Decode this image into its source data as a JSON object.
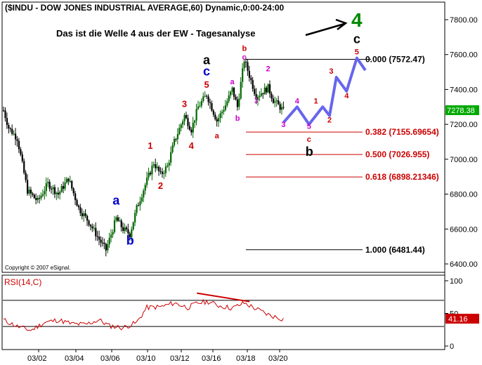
{
  "header": {
    "title": "($INDU - DOW JONES INDUSTRIAL AVERAGE,60) Dynamic,0:00-24:00",
    "annotation": "Das ist die Welle 4 aus der EW - Tagesanalyse"
  },
  "copyright": "Copyright © 2007 eSignal.",
  "price_panel": {
    "y_ticks": [
      "7800.00",
      "7600.00",
      "7400.00",
      "7200.00",
      "7000.00",
      "6800.00",
      "6600.00",
      "6400.00"
    ],
    "last_price": "7278.38",
    "fib_levels": [
      {
        "label": "0.000 (7572.47)",
        "value": 7572.47,
        "color": "#000000"
      },
      {
        "label": "0.382 (7155.69654)",
        "value": 7155.69654,
        "color": "#cc0000"
      },
      {
        "label": "0.500 (7026.955)",
        "value": 7026.955,
        "color": "#cc0000"
      },
      {
        "label": "0.618 (6898.21346)",
        "value": 6898.21346,
        "color": "#cc0000"
      },
      {
        "label": "1.000 (6481.44)",
        "value": 6481.44,
        "color": "#000000"
      }
    ]
  },
  "rsi_panel": {
    "label": "RSI(14,C)",
    "y_ticks": [
      "100",
      "50",
      "0"
    ],
    "last_value": "41.16"
  },
  "x_ticks": [
    "03/02",
    "03/04",
    "03/06",
    "03/10",
    "03/12",
    "03/16",
    "03/18",
    "03/20"
  ],
  "wave_labels": [
    {
      "text": "a",
      "color": "#0000cc",
      "size": "big",
      "price": 6740,
      "bar": 66
    },
    {
      "text": "b",
      "color": "#0000cc",
      "size": "big",
      "price": 6510,
      "bar": 74
    },
    {
      "text": "1",
      "color": "#cc0000",
      "size": "mid",
      "price": 7060,
      "bar": 86
    },
    {
      "text": "2",
      "color": "#cc0000",
      "size": "mid",
      "price": 6830,
      "bar": 92
    },
    {
      "text": "3",
      "color": "#cc0000",
      "size": "mid",
      "price": 7300,
      "bar": 106
    },
    {
      "text": "4",
      "color": "#cc0000",
      "size": "mid",
      "price": 7060,
      "bar": 110
    },
    {
      "text": "a",
      "color": "#000000",
      "size": "big",
      "price": 7545,
      "bar": 119
    },
    {
      "text": "c",
      "color": "#0000cc",
      "size": "big",
      "price": 7480,
      "bar": 119
    },
    {
      "text": "5",
      "color": "#cc0000",
      "size": "mid",
      "price": 7410,
      "bar": 119
    },
    {
      "text": "a",
      "color": "#cc0000",
      "size": "small",
      "price": 7120,
      "bar": 125
    },
    {
      "text": "a",
      "color": "#cc00cc",
      "size": "small",
      "price": 7430,
      "bar": 134
    },
    {
      "text": "b",
      "color": "#cc00cc",
      "size": "small",
      "price": 7220,
      "bar": 137
    },
    {
      "text": "b",
      "color": "#cc0000",
      "size": "small",
      "price": 7620,
      "bar": 141
    },
    {
      "text": "c",
      "color": "#cc00cc",
      "size": "small",
      "price": 7570,
      "bar": 141
    },
    {
      "text": "2",
      "color": "#cc00cc",
      "size": "small",
      "price": 7505,
      "bar": 155
    },
    {
      "text": "1",
      "color": "#cc00cc",
      "size": "small",
      "price": 7325,
      "bar": 148
    },
    {
      "text": "3",
      "color": "#cc00cc",
      "size": "small",
      "price": 7185,
      "bar": 164
    },
    {
      "text": "4",
      "color": "#cc00cc",
      "size": "small",
      "price": 7320,
      "bar": 172
    },
    {
      "text": "5",
      "color": "#cc00cc",
      "size": "small",
      "price": 7175,
      "bar": 179
    },
    {
      "text": "c",
      "color": "#cc0000",
      "size": "small",
      "price": 7100,
      "bar": 179
    },
    {
      "text": "b",
      "color": "#000000",
      "size": "big",
      "price": 7020,
      "bar": 179
    },
    {
      "text": "1",
      "color": "#cc0000",
      "size": "small",
      "price": 7320,
      "bar": 183
    },
    {
      "text": "2",
      "color": "#cc0000",
      "size": "small",
      "price": 7210,
      "bar": 191
    },
    {
      "text": "3",
      "color": "#cc0000",
      "size": "small",
      "price": 7490,
      "bar": 192
    },
    {
      "text": "4",
      "color": "#cc0000",
      "size": "small",
      "price": 7350,
      "bar": 201
    },
    {
      "text": "5",
      "color": "#cc0000",
      "size": "small",
      "price": 7600,
      "bar": 207
    },
    {
      "text": "c",
      "color": "#000000",
      "size": "big",
      "price": 7665,
      "bar": 207
    },
    {
      "text": "4",
      "color": "#008800",
      "size": "huge",
      "price": 7760,
      "bar": 207
    }
  ],
  "colors": {
    "up_bar": "#006600",
    "down_bar": "#000000",
    "projection": "#6666ee",
    "rsi_line": "#cc0000",
    "price_box": "#00aa00",
    "rsi_box": "#cc0000"
  },
  "chart_data": {
    "type": "candlestick",
    "title": "($INDU - DOW JONES INDUSTRIAL AVERAGE,60) Dynamic,0:00-24:00",
    "y_range": [
      6400,
      7800
    ],
    "rsi_range": [
      0,
      100
    ],
    "x_range_bars": [
      0,
      212
    ],
    "price_path": [
      {
        "bar": 0,
        "price": 7280
      },
      {
        "bar": 3,
        "price": 7180
      },
      {
        "bar": 8,
        "price": 7120
      },
      {
        "bar": 14,
        "price": 6820
      },
      {
        "bar": 20,
        "price": 6760
      },
      {
        "bar": 26,
        "price": 6860
      },
      {
        "bar": 32,
        "price": 6800
      },
      {
        "bar": 38,
        "price": 6890
      },
      {
        "bar": 44,
        "price": 6720
      },
      {
        "bar": 50,
        "price": 6640
      },
      {
        "bar": 56,
        "price": 6540
      },
      {
        "bar": 60,
        "price": 6480
      },
      {
        "bar": 66,
        "price": 6660
      },
      {
        "bar": 70,
        "price": 6600
      },
      {
        "bar": 74,
        "price": 6570
      },
      {
        "bar": 78,
        "price": 6720
      },
      {
        "bar": 84,
        "price": 6880
      },
      {
        "bar": 88,
        "price": 6980
      },
      {
        "bar": 92,
        "price": 6910
      },
      {
        "bar": 96,
        "price": 6960
      },
      {
        "bar": 100,
        "price": 7100
      },
      {
        "bar": 106,
        "price": 7250
      },
      {
        "bar": 110,
        "price": 7170
      },
      {
        "bar": 114,
        "price": 7300
      },
      {
        "bar": 119,
        "price": 7370
      },
      {
        "bar": 125,
        "price": 7220
      },
      {
        "bar": 130,
        "price": 7310
      },
      {
        "bar": 134,
        "price": 7400
      },
      {
        "bar": 137,
        "price": 7300
      },
      {
        "bar": 141,
        "price": 7570
      },
      {
        "bar": 148,
        "price": 7360
      },
      {
        "bar": 155,
        "price": 7410
      },
      {
        "bar": 158,
        "price": 7340
      },
      {
        "bar": 164,
        "price": 7278
      }
    ],
    "projection_path": [
      {
        "bar": 164,
        "price": 7210
      },
      {
        "bar": 172,
        "price": 7300
      },
      {
        "bar": 179,
        "price": 7200
      },
      {
        "bar": 187,
        "price": 7300
      },
      {
        "bar": 191,
        "price": 7250
      },
      {
        "bar": 195,
        "price": 7470
      },
      {
        "bar": 201,
        "price": 7390
      },
      {
        "bar": 207,
        "price": 7580
      },
      {
        "bar": 212,
        "price": 7510
      }
    ],
    "rsi_path": [
      {
        "bar": 0,
        "price": 40
      },
      {
        "bar": 8,
        "price": 30
      },
      {
        "bar": 16,
        "price": 24
      },
      {
        "bar": 24,
        "price": 36
      },
      {
        "bar": 32,
        "price": 40
      },
      {
        "bar": 40,
        "price": 34
      },
      {
        "bar": 48,
        "price": 33
      },
      {
        "bar": 56,
        "price": 40
      },
      {
        "bar": 62,
        "price": 31
      },
      {
        "bar": 70,
        "price": 28
      },
      {
        "bar": 78,
        "price": 36
      },
      {
        "bar": 84,
        "price": 59
      },
      {
        "bar": 92,
        "price": 60
      },
      {
        "bar": 100,
        "price": 66
      },
      {
        "bar": 108,
        "price": 59
      },
      {
        "bar": 114,
        "price": 66
      },
      {
        "bar": 120,
        "price": 68
      },
      {
        "bar": 126,
        "price": 62
      },
      {
        "bar": 134,
        "price": 58
      },
      {
        "bar": 141,
        "price": 66
      },
      {
        "bar": 148,
        "price": 57
      },
      {
        "bar": 156,
        "price": 47
      },
      {
        "bar": 164,
        "price": 41.16
      }
    ],
    "rsi_divergence": [
      {
        "bar": 110,
        "price": 80
      },
      {
        "bar": 140,
        "price": 67
      }
    ]
  }
}
